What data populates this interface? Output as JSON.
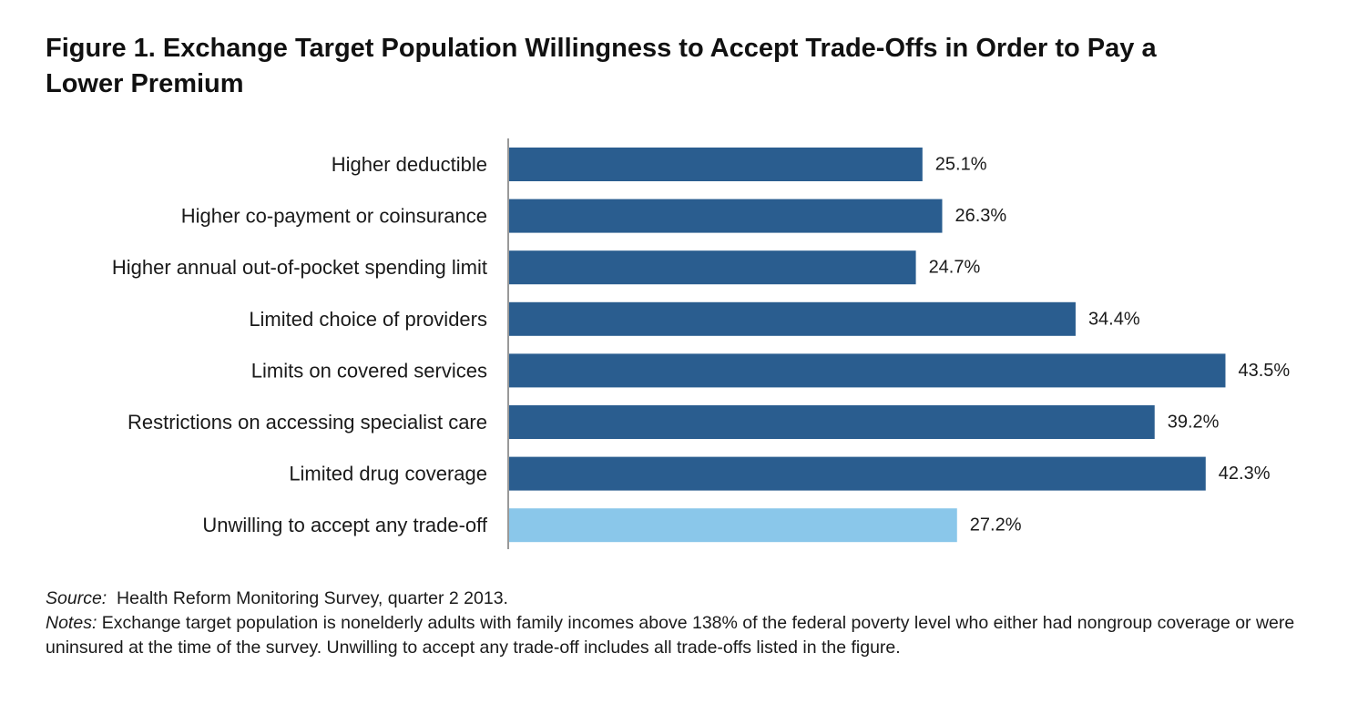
{
  "title": "Figure 1. Exchange Target Population Willingness to Accept Trade-Offs in Order to Pay a Lower Premium",
  "chart_data": {
    "type": "bar",
    "orientation": "horizontal",
    "categories": [
      "Higher deductible",
      "Higher co-payment or coinsurance",
      "Higher annual out-of-pocket spending limit",
      "Limited choice of providers",
      "Limits on covered services",
      "Restrictions on accessing specialist care",
      "Limited drug coverage",
      "Unwilling to accept any trade-off"
    ],
    "values": [
      25.1,
      26.3,
      24.7,
      34.4,
      43.5,
      39.2,
      42.3,
      27.2
    ],
    "value_labels": [
      "25.1%",
      "26.3%",
      "24.7%",
      "34.4%",
      "43.5%",
      "39.2%",
      "42.3%",
      "27.2%"
    ],
    "colors": [
      "#2a5d8f",
      "#2a5d8f",
      "#2a5d8f",
      "#2a5d8f",
      "#2a5d8f",
      "#2a5d8f",
      "#2a5d8f",
      "#8ac7ea"
    ],
    "xlim": [
      0,
      50
    ],
    "grid": false,
    "legend": "none"
  },
  "footer": {
    "source_label": "Source:",
    "source_text": "Health Reform Monitoring Survey, quarter 2 2013.",
    "notes_label": "Notes:",
    "notes_text": "Exchange target population is nonelderly adults with family incomes above 138% of the federal poverty level who either had nongroup coverage or were uninsured at the time of the survey. Unwilling to accept any trade-off includes all trade-offs listed in the figure."
  }
}
